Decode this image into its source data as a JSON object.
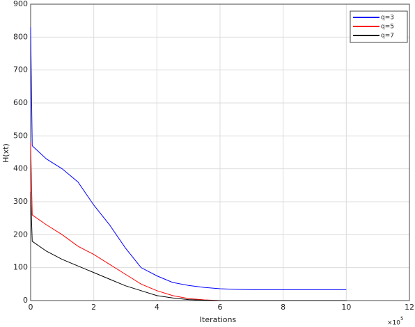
{
  "chart_data": {
    "type": "line",
    "xlabel": "Iterations",
    "ylabel": "H(xt)",
    "x_offset_text": "×10",
    "x_offset_exponent": "5",
    "x": [
      0,
      0.05,
      0.5,
      1,
      1.5,
      2,
      2.5,
      3,
      3.5,
      4,
      4.5,
      5,
      5.5,
      6,
      6.5,
      7,
      7.5,
      8,
      8.5,
      9,
      9.5,
      10
    ],
    "series": [
      {
        "name": "q=3",
        "color": "#0000ff",
        "values": [
          830,
          470,
          430,
          400,
          360,
          290,
          230,
          160,
          100,
          75,
          55,
          46,
          40,
          36,
          34,
          33,
          33,
          33,
          33,
          33,
          33,
          33
        ]
      },
      {
        "name": "q=5",
        "color": "#ff0000",
        "values": [
          480,
          260,
          230,
          200,
          165,
          140,
          110,
          80,
          50,
          30,
          15,
          6,
          2,
          0,
          0,
          0,
          0,
          0,
          0,
          0,
          0,
          0
        ]
      },
      {
        "name": "q=7",
        "color": "#000000",
        "values": [
          330,
          180,
          150,
          125,
          105,
          85,
          65,
          45,
          30,
          15,
          8,
          3,
          1,
          0,
          0,
          0,
          0,
          0,
          0,
          0,
          0,
          0
        ]
      }
    ],
    "xlim": [
      0,
      12
    ],
    "xticks": [
      0,
      2,
      4,
      6,
      8,
      10,
      12
    ],
    "ylim": [
      0,
      900
    ],
    "yticks": [
      0,
      100,
      200,
      300,
      400,
      500,
      600,
      700,
      800,
      900
    ],
    "grid": true,
    "legend": "upper right"
  }
}
